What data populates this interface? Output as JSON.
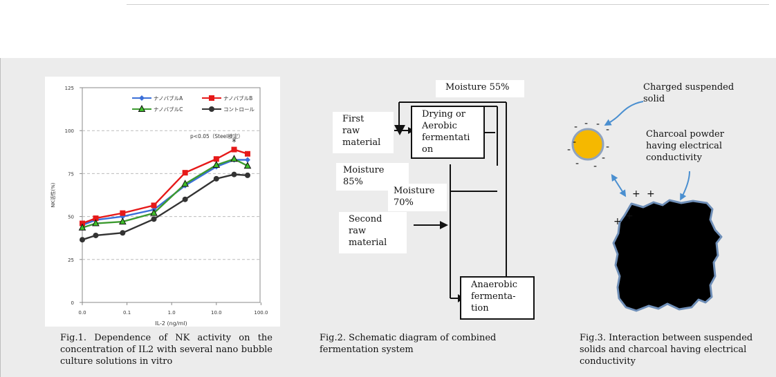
{
  "fig1": {
    "caption": "Fig.1.  Dependence of NK activity on the concentration of IL2 with several nano bubble culture solutions in vitro",
    "chart_data": {
      "type": "line",
      "xlabel": "IL-2 (ng/ml)",
      "ylabel": "NK活性(%)",
      "xscale": "log",
      "x_tick_labels": [
        "0.0",
        "0.1",
        "1.0",
        "10.0",
        "100.0"
      ],
      "y_tick_labels": [
        "0",
        "25",
        "50",
        "75",
        "100",
        "125"
      ],
      "ylim": [
        0,
        125
      ],
      "grid": "dashed horizontal",
      "legend_position": "top-right",
      "annotation": "p<0.05（Steel検定）",
      "significance_mark": "*",
      "x": [
        0.01,
        0.02,
        0.08,
        0.4,
        2,
        10,
        25,
        50
      ],
      "series": [
        {
          "name": "ナノバブルA",
          "color": "#3b6fd8",
          "marker": "diamond",
          "values": [
            45,
            48,
            50,
            54,
            68,
            79,
            83,
            83
          ]
        },
        {
          "name": "ナノバブルB",
          "color": "#e61919",
          "marker": "square",
          "values": [
            46,
            49,
            52,
            56.5,
            75.5,
            83.5,
            89,
            86.5
          ]
        },
        {
          "name": "ナノバブルC",
          "color": "#3c9a2f",
          "marker": "triangle",
          "values": [
            43.5,
            46,
            47,
            52,
            69,
            80,
            83.5,
            79.5
          ]
        },
        {
          "name": "コントロール",
          "color": "#333333",
          "marker": "circle",
          "values": [
            36.5,
            39,
            40.5,
            48.5,
            60,
            72,
            74.5,
            74
          ]
        }
      ]
    }
  },
  "fig2": {
    "caption": "Fig.2.  Schematic  diagram  of  combined fermentation system",
    "moisture_top": "Moisture 55%",
    "first_raw": "First\nraw\nmaterial",
    "drying": "Drying or\nAerobic\nfermentati\non",
    "moisture_85": "Moisture\n85%",
    "moisture_70": "Moisture\n70%",
    "second_raw": "Second\nraw\nmaterial",
    "anaerobic": "Anaerobic\nfermenta-\ntion"
  },
  "fig3": {
    "caption": "Fig.3.    Interaction between suspended solids and charcoal having electrical conductivity",
    "charged_label": "Charged suspended\nsolid",
    "charcoal_label": "Charcoal powder\nhaving electrical\nconductivity",
    "minus_sign": "-",
    "plus_sign": "+",
    "particle_color": "#f5b800",
    "arrow_color": "#4a8fd0"
  }
}
